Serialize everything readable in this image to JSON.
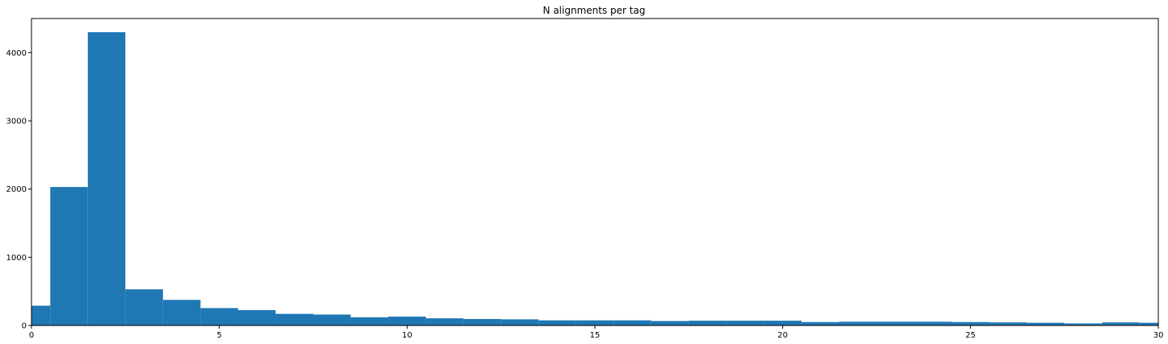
{
  "chart_data": {
    "type": "bar",
    "title": "N alignments per tag",
    "xlabel": "",
    "ylabel": "",
    "xlim": [
      0,
      30
    ],
    "ylim": [
      0,
      4500
    ],
    "bin_edges": [
      -0.5,
      0.5,
      1.5,
      2.5,
      3.5,
      4.5,
      5.5,
      6.5,
      7.5,
      8.5,
      9.5,
      10.5,
      11.5,
      12.5,
      13.5,
      14.5,
      15.5,
      16.5,
      17.5,
      18.5,
      19.5,
      20.5,
      21.5,
      22.5,
      23.5,
      24.5,
      25.5,
      26.5,
      27.5,
      28.5,
      29.5,
      30.5
    ],
    "values": [
      290,
      2030,
      4300,
      530,
      375,
      255,
      225,
      170,
      160,
      120,
      130,
      105,
      95,
      90,
      75,
      75,
      75,
      65,
      70,
      70,
      70,
      50,
      55,
      55,
      55,
      50,
      45,
      40,
      30,
      45,
      40
    ],
    "xticks": [
      0,
      5,
      10,
      15,
      20,
      25,
      30
    ],
    "xtick_labels": [
      "0",
      "5",
      "10",
      "15",
      "20",
      "25",
      "30"
    ],
    "yticks": [
      0,
      1000,
      2000,
      3000,
      4000
    ],
    "ytick_labels": [
      "0",
      "1000",
      "2000",
      "3000",
      "4000"
    ],
    "bar_color": "#1f77b4",
    "grid": false,
    "legend": "none"
  }
}
